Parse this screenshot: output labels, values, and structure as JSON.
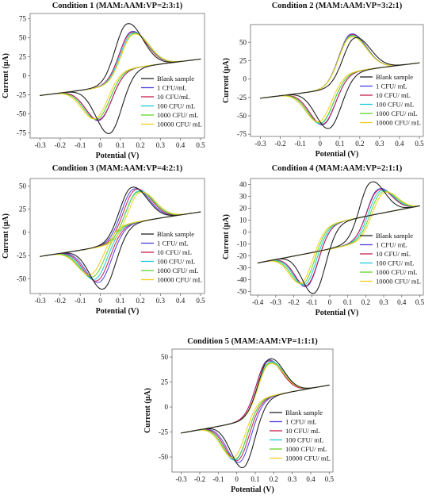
{
  "figure": {
    "colors": {
      "Blank sample": "#222222",
      "1 CFU/mL": "#4b3fe0",
      "10 CFU/mL": "#c81d4e",
      "100 CFU/mL": "#1ec9d6",
      "1000 CFU/mL": "#63d32d",
      "10000 CFU/mL": "#f2ce1f"
    }
  },
  "chart_data": [
    {
      "type": "line",
      "title": "Condition 1 (MAM:AAM:VP=2:3:1)",
      "xlabel": "Potential (V)",
      "ylabel": "Current (μA)",
      "xlim": [
        -0.35,
        0.52
      ],
      "ylim": [
        -82,
        82
      ],
      "xticks": [
        -0.3,
        -0.2,
        -0.1,
        0,
        0.1,
        0.2,
        0.3,
        0.4,
        0.5
      ],
      "yticks": [
        -75,
        -50,
        -25,
        0,
        25,
        50,
        75
      ],
      "ytick_labels": [
        "-75",
        "-50",
        "-25",
        "0",
        "25",
        "50",
        "75"
      ],
      "legend": [
        "Blank sample",
        "1 CFU/mL",
        "10 CFU/mL",
        "100 CFU/ mL",
        "1000 CFU/ mL",
        "10000 CFU/ mL"
      ],
      "legend_keys": [
        "Blank sample",
        "1 CFU/mL",
        "10 CFU/mL",
        "100 CFU/mL",
        "1000 CFU/mL",
        "10000 CFU/mL"
      ],
      "legend_position": "lower-right",
      "series": [
        {
          "name": "Blank sample",
          "x_start": -0.3,
          "x_end": 0.5,
          "ox_peak_x": 0.13,
          "ox_peak_y": 73,
          "red_peak_x": 0.05,
          "red_peak_y": -76
        },
        {
          "name": "1 CFU/mL",
          "x_start": -0.3,
          "x_end": 0.5,
          "ox_peak_x": 0.15,
          "ox_peak_y": 62,
          "red_peak_x": 0.0,
          "red_peak_y": -57
        },
        {
          "name": "10 CFU/mL",
          "x_start": -0.3,
          "x_end": 0.5,
          "ox_peak_x": 0.15,
          "ox_peak_y": 61,
          "red_peak_x": 0.0,
          "red_peak_y": -56
        },
        {
          "name": "100 CFU/mL",
          "x_start": -0.3,
          "x_end": 0.5,
          "ox_peak_x": 0.155,
          "ox_peak_y": 60,
          "red_peak_x": -0.01,
          "red_peak_y": -55
        },
        {
          "name": "1000 CFU/mL",
          "x_start": -0.3,
          "x_end": 0.5,
          "ox_peak_x": 0.16,
          "ox_peak_y": 59,
          "red_peak_x": -0.01,
          "red_peak_y": -55
        },
        {
          "name": "10000 CFU/mL",
          "x_start": -0.3,
          "x_end": 0.5,
          "ox_peak_x": 0.16,
          "ox_peak_y": 58,
          "red_peak_x": -0.02,
          "red_peak_y": -54
        }
      ]
    },
    {
      "type": "line",
      "title": "Condition 2 (MAM:AAM:VP=3:2:1)",
      "xlabel": "Potential (V)",
      "ylabel": "Current (μA)",
      "xlim": [
        -0.35,
        0.52
      ],
      "ylim": [
        -78,
        74
      ],
      "xticks": [
        -0.3,
        -0.2,
        -0.1,
        0,
        0.1,
        0.2,
        0.3,
        0.4,
        0.5
      ],
      "yticks": [
        -75,
        -50,
        -25,
        0,
        25,
        50
      ],
      "ytick_labels": [
        "-75",
        "-50",
        "-25",
        "0",
        "25",
        "50"
      ],
      "legend": [
        "Blank sample",
        "1 CFU/ mL",
        "10 CFU/ mL",
        "100 CFU/ mL",
        "1000 CFU/ mL",
        "10000 CFU/ mL"
      ],
      "legend_keys": [
        "Blank sample",
        "1 CFU/mL",
        "10 CFU/mL",
        "100 CFU/mL",
        "1000 CFU/mL",
        "10000 CFU/mL"
      ],
      "legend_position": "lower-right",
      "series": [
        {
          "name": "Blank sample",
          "x_start": -0.3,
          "x_end": 0.5,
          "ox_peak_x": 0.17,
          "ox_peak_y": 59,
          "red_peak_x": 0.05,
          "red_peak_y": -67
        },
        {
          "name": "1 CFU/mL",
          "x_start": -0.3,
          "x_end": 0.5,
          "ox_peak_x": 0.15,
          "ox_peak_y": 65,
          "red_peak_x": 0.02,
          "red_peak_y": -61
        },
        {
          "name": "10 CFU/mL",
          "x_start": -0.3,
          "x_end": 0.5,
          "ox_peak_x": 0.15,
          "ox_peak_y": 64,
          "red_peak_x": 0.02,
          "red_peak_y": -60
        },
        {
          "name": "100 CFU/mL",
          "x_start": -0.3,
          "x_end": 0.5,
          "ox_peak_x": 0.15,
          "ox_peak_y": 63,
          "red_peak_x": 0.01,
          "red_peak_y": -59
        },
        {
          "name": "1000 CFU/mL",
          "x_start": -0.3,
          "x_end": 0.5,
          "ox_peak_x": 0.15,
          "ox_peak_y": 62,
          "red_peak_x": 0.01,
          "red_peak_y": -58
        },
        {
          "name": "10000 CFU/mL",
          "x_start": -0.3,
          "x_end": 0.5,
          "ox_peak_x": 0.15,
          "ox_peak_y": 61,
          "red_peak_x": 0.0,
          "red_peak_y": -56
        }
      ]
    },
    {
      "type": "line",
      "title": "Condition 3 (MAM:AAM:VP=4:2:1)",
      "xlabel": "Potential (V)",
      "ylabel": "Current (μA)",
      "xlim": [
        -0.35,
        0.52
      ],
      "ylim": [
        -66,
        58
      ],
      "xticks": [
        -0.3,
        -0.2,
        -0.1,
        0,
        0.1,
        0.2,
        0.3,
        0.4,
        0.5
      ],
      "yticks": [
        -50,
        -25,
        0,
        25,
        50
      ],
      "ytick_labels": [
        "-50",
        "-25",
        "0",
        "25",
        "50"
      ],
      "legend": [
        "Blank sample",
        "1 CFU/ mL",
        "10 CFU/ mL",
        "100 CFU/ mL",
        "1000 CFU/ mL",
        "10000 CFU/ mL"
      ],
      "legend_keys": [
        "Blank sample",
        "1 CFU/mL",
        "10 CFU/mL",
        "100 CFU/mL",
        "1000 CFU/mL",
        "10000 CFU/mL"
      ],
      "legend_position": "lower-right",
      "series": [
        {
          "name": "Blank sample",
          "x_start": -0.3,
          "x_end": 0.5,
          "ox_peak_x": 0.15,
          "ox_peak_y": 52,
          "red_peak_x": 0.02,
          "red_peak_y": -60
        },
        {
          "name": "1 CFU/mL",
          "x_start": -0.3,
          "x_end": 0.5,
          "ox_peak_x": 0.16,
          "ox_peak_y": 50,
          "red_peak_x": 0.0,
          "red_peak_y": -52
        },
        {
          "name": "10 CFU/mL",
          "x_start": -0.3,
          "x_end": 0.5,
          "ox_peak_x": 0.17,
          "ox_peak_y": 49,
          "red_peak_x": -0.01,
          "red_peak_y": -50
        },
        {
          "name": "100 CFU/mL",
          "x_start": -0.3,
          "x_end": 0.5,
          "ox_peak_x": 0.18,
          "ox_peak_y": 47,
          "red_peak_x": -0.02,
          "red_peak_y": -48
        },
        {
          "name": "1000 CFU/mL",
          "x_start": -0.3,
          "x_end": 0.5,
          "ox_peak_x": 0.18,
          "ox_peak_y": 46,
          "red_peak_x": -0.03,
          "red_peak_y": -45
        },
        {
          "name": "10000 CFU/mL",
          "x_start": -0.3,
          "x_end": 0.5,
          "ox_peak_x": 0.19,
          "ox_peak_y": 45,
          "red_peak_x": -0.04,
          "red_peak_y": -42
        }
      ]
    },
    {
      "type": "line",
      "title": "Condition 4 (MAM:AAM:VP=2:1:1)",
      "xlabel": "Potential (V)",
      "ylabel": "Current (μA)",
      "xlim": [
        -0.44,
        0.52
      ],
      "ylim": [
        -53,
        45
      ],
      "xticks": [
        -0.4,
        -0.3,
        -0.2,
        -0.1,
        0,
        0.1,
        0.2,
        0.3,
        0.4,
        0.5
      ],
      "yticks": [
        -50,
        -40,
        -30,
        -20,
        -10,
        0,
        10,
        20,
        30,
        40
      ],
      "ytick_labels": [
        "-50",
        "-40",
        "-30",
        "-20",
        "-10",
        "0",
        "10",
        "20",
        "30",
        "40"
      ],
      "legend": [
        "Blank sample",
        "1 CFU/ mL",
        "10 CFU/ mL",
        "100 CFU/ mL",
        "1000 CFU/ mL",
        "10000 CFU/ mL"
      ],
      "legend_keys": [
        "Blank sample",
        "1 CFU/mL",
        "10 CFU/mL",
        "100 CFU/mL",
        "1000 CFU/mL",
        "10000 CFU/mL"
      ],
      "legend_position": "lower-right",
      "series": [
        {
          "name": "Blank sample",
          "x_start": -0.4,
          "x_end": 0.5,
          "ox_peak_x": 0.22,
          "ox_peak_y": 42,
          "red_peak_x": -0.08,
          "red_peak_y": -49
        },
        {
          "name": "1 CFU/mL",
          "x_start": -0.4,
          "x_end": 0.5,
          "ox_peak_x": 0.26,
          "ox_peak_y": 35,
          "red_peak_x": -0.12,
          "red_peak_y": -42
        },
        {
          "name": "10 CFU/mL",
          "x_start": -0.4,
          "x_end": 0.5,
          "ox_peak_x": 0.26,
          "ox_peak_y": 34,
          "red_peak_x": -0.12,
          "red_peak_y": -41
        },
        {
          "name": "100 CFU/mL",
          "x_start": -0.4,
          "x_end": 0.5,
          "ox_peak_x": 0.27,
          "ox_peak_y": 33,
          "red_peak_x": -0.13,
          "red_peak_y": -40
        },
        {
          "name": "1000 CFU/mL",
          "x_start": -0.4,
          "x_end": 0.5,
          "ox_peak_x": 0.28,
          "ox_peak_y": 32,
          "red_peak_x": -0.14,
          "red_peak_y": -39
        },
        {
          "name": "10000 CFU/mL",
          "x_start": -0.4,
          "x_end": 0.5,
          "ox_peak_x": 0.29,
          "ox_peak_y": 31,
          "red_peak_x": -0.15,
          "red_peak_y": -38
        }
      ]
    },
    {
      "type": "line",
      "title": "Condition 5 (MAM:AAM:VP=1:1:1)",
      "xlabel": "Potential (V)",
      "ylabel": "Current (μA)",
      "xlim": [
        -0.35,
        0.52
      ],
      "ylim": [
        -65,
        58
      ],
      "xticks": [
        -0.3,
        -0.2,
        -0.1,
        0,
        0.1,
        0.2,
        0.3,
        0.4,
        0.5
      ],
      "yticks": [
        -50,
        -25,
        0,
        25,
        50
      ],
      "ytick_labels": [
        "-50",
        "-25",
        "0",
        "25",
        "50"
      ],
      "legend": [
        "Blank sample",
        "1 CFU/ mL",
        "10 CFU/ mL",
        "100 CFU/ mL",
        "1000 CFU/ mL",
        "10000 CFU/ mL"
      ],
      "legend_keys": [
        "Blank sample",
        "1 CFU/mL",
        "10 CFU/mL",
        "100 CFU/mL",
        "1000 CFU/mL",
        "10000 CFU/mL"
      ],
      "legend_position": "lower-right",
      "series": [
        {
          "name": "Blank sample",
          "x_start": -0.3,
          "x_end": 0.5,
          "ox_peak_x": 0.17,
          "ox_peak_y": 51,
          "red_peak_x": 0.04,
          "red_peak_y": -60
        },
        {
          "name": "1 CFU/mL",
          "x_start": -0.3,
          "x_end": 0.5,
          "ox_peak_x": 0.16,
          "ox_peak_y": 50,
          "red_peak_x": 0.02,
          "red_peak_y": -54
        },
        {
          "name": "10 CFU/mL",
          "x_start": -0.3,
          "x_end": 0.5,
          "ox_peak_x": 0.16,
          "ox_peak_y": 49,
          "red_peak_x": 0.01,
          "red_peak_y": -52
        },
        {
          "name": "100 CFU/mL",
          "x_start": -0.3,
          "x_end": 0.5,
          "ox_peak_x": 0.17,
          "ox_peak_y": 48,
          "red_peak_x": 0.0,
          "red_peak_y": -51
        },
        {
          "name": "1000 CFU/mL",
          "x_start": -0.3,
          "x_end": 0.5,
          "ox_peak_x": 0.17,
          "ox_peak_y": 47,
          "red_peak_x": 0.0,
          "red_peak_y": -50
        },
        {
          "name": "10000 CFU/mL",
          "x_start": -0.3,
          "x_end": 0.5,
          "ox_peak_x": 0.17,
          "ox_peak_y": 46,
          "red_peak_x": -0.01,
          "red_peak_y": -48
        }
      ]
    }
  ]
}
